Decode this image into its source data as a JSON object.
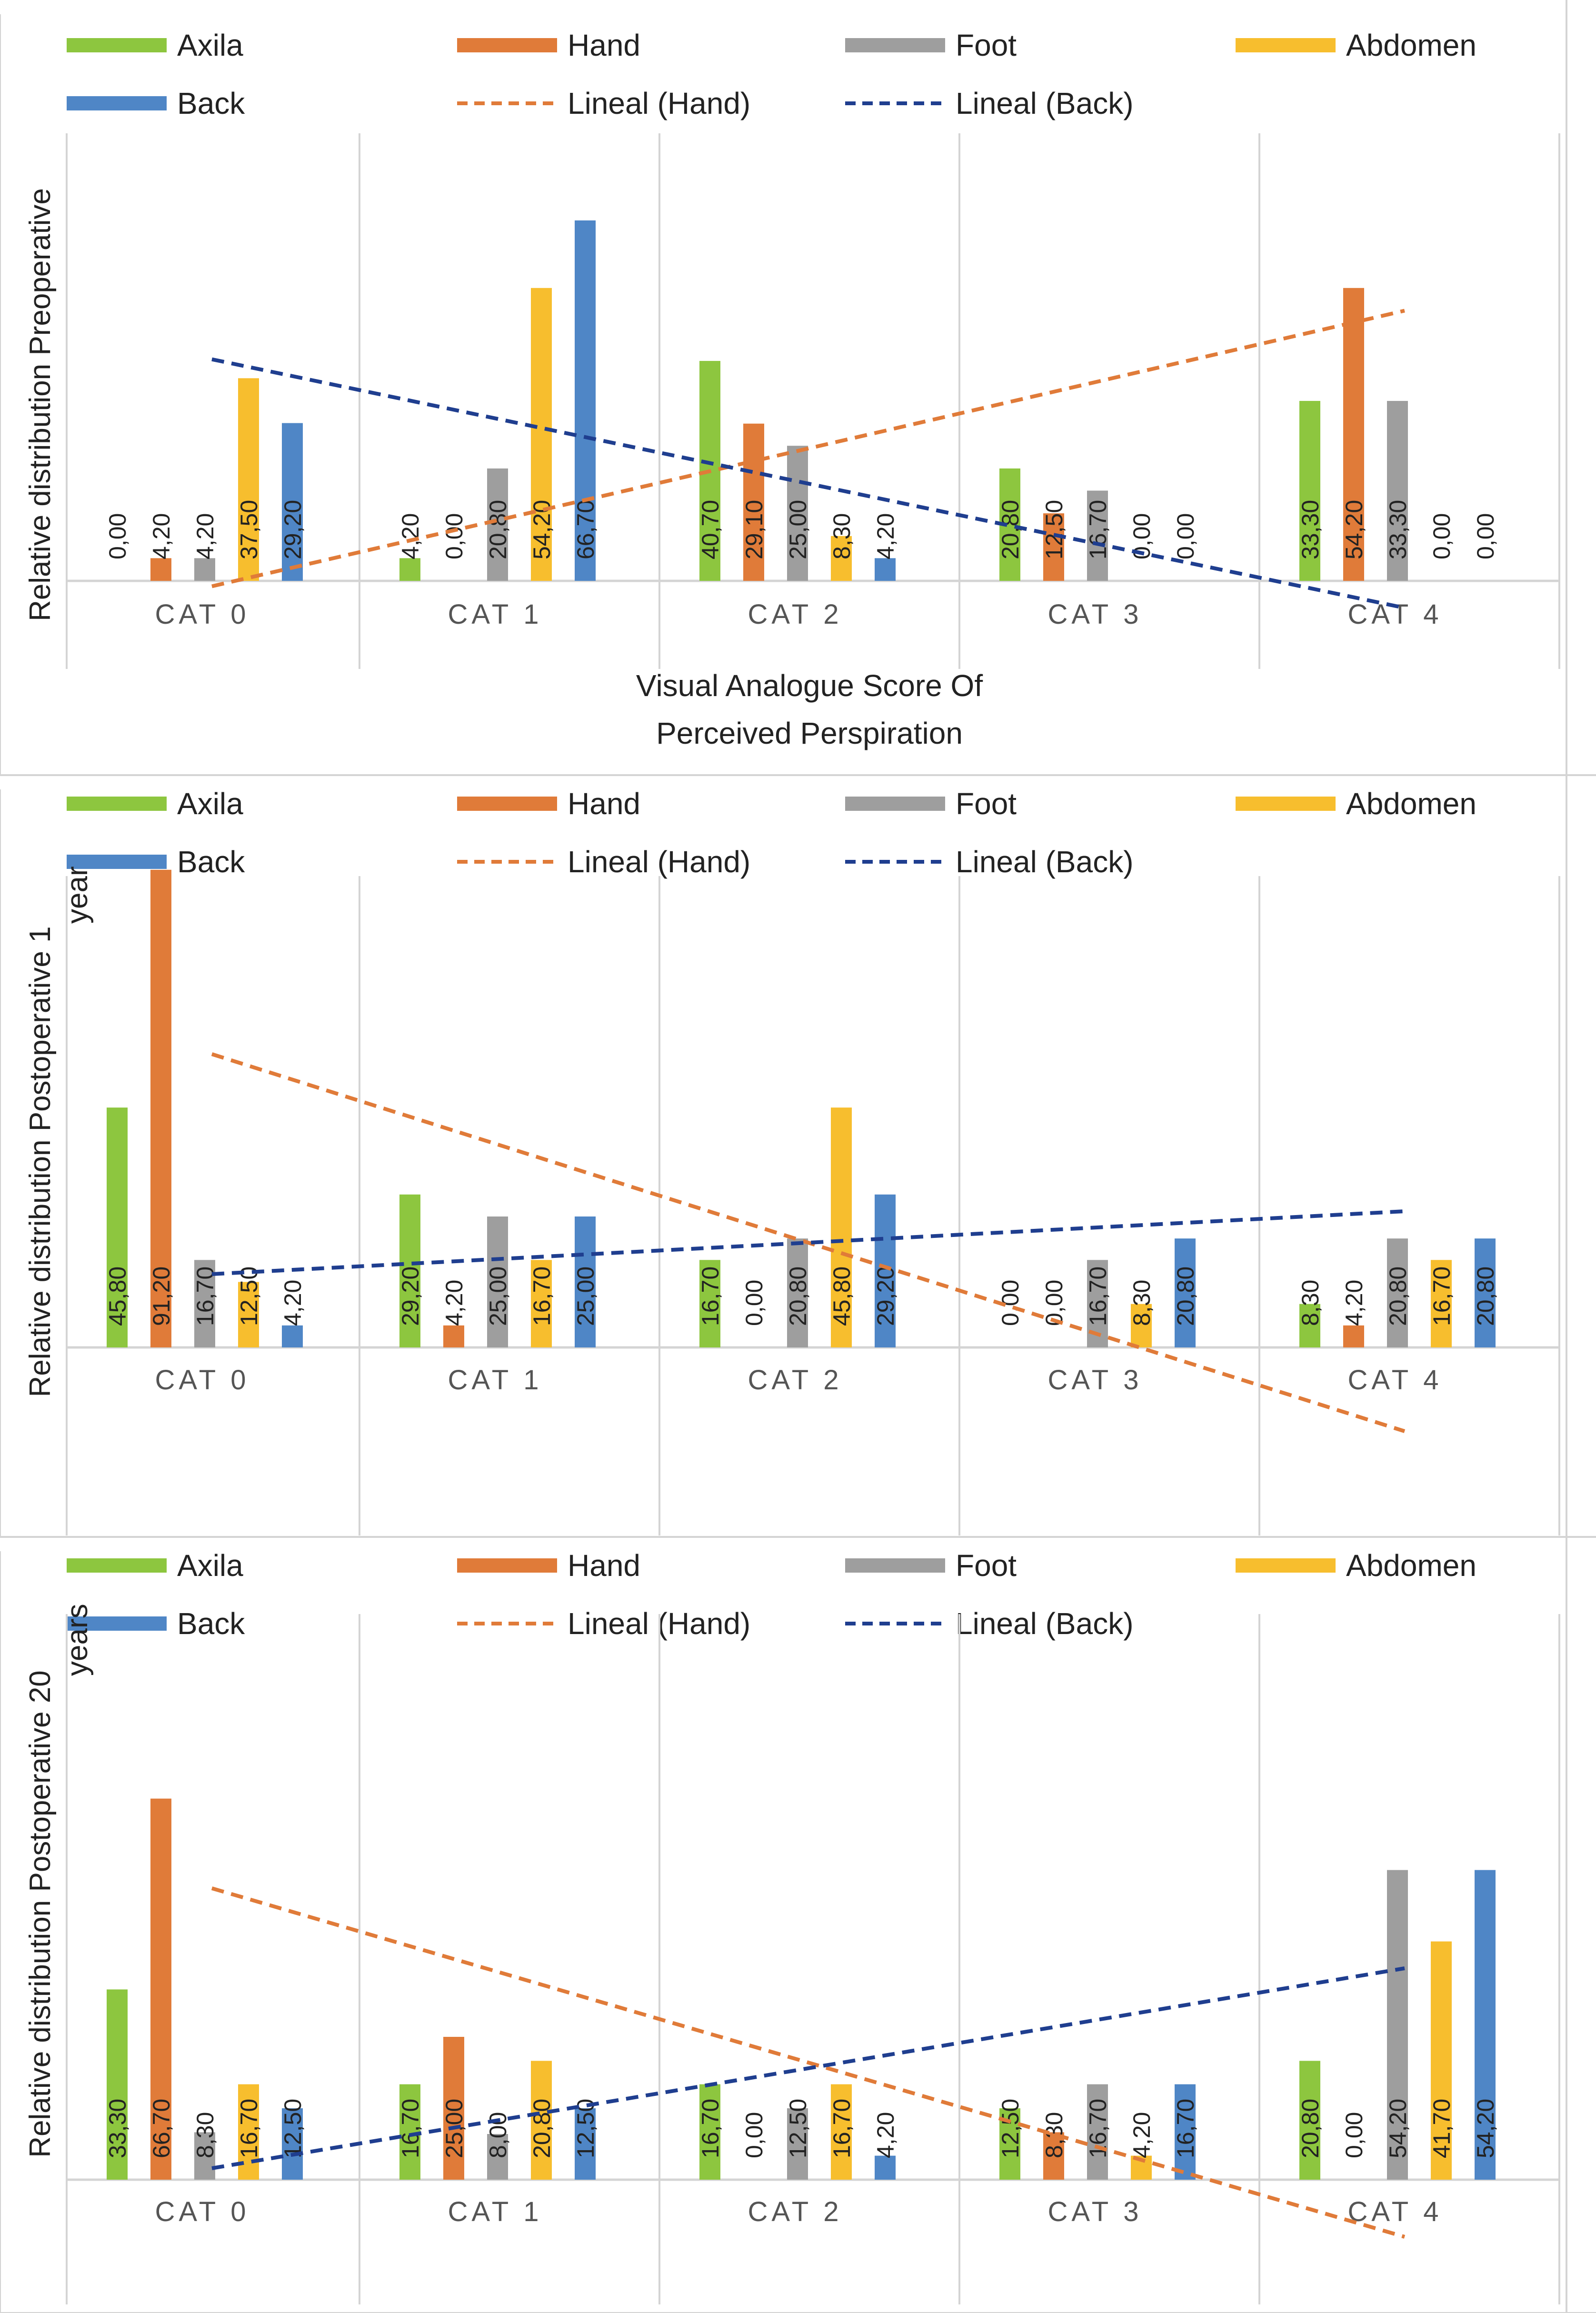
{
  "colors": {
    "Axila": "#8dc63f",
    "Hand": "#e07b39",
    "Foot": "#9e9e9e",
    "Abdomen": "#f7be2e",
    "Back": "#4f86c6",
    "trend_hand": "#e07b39",
    "trend_back": "#1f3e8f",
    "axis": "#d4d4d4",
    "text": "#222222",
    "tick": "#555555"
  },
  "legend": {
    "series": [
      "Axila",
      "Hand",
      "Foot",
      "Abdomen",
      "Back"
    ],
    "trends": [
      "Lineal (Hand)",
      "Lineal (Back)"
    ]
  },
  "chart_data": [
    {
      "type": "bar",
      "ylabel_lines": [
        "Relative distribution Preoperative"
      ],
      "xlabel_lines": [
        "Visual Analogue Score Of",
        "Perceived Perspiration"
      ],
      "categories": [
        "CAT 0",
        "CAT 1",
        "CAT 2",
        "CAT 3",
        "CAT 4"
      ],
      "series": [
        {
          "name": "Axila",
          "values": [
            0.0,
            4.2,
            40.7,
            20.8,
            33.3
          ],
          "labels": [
            "0,00",
            "4,20",
            "40,70",
            "20,80",
            "33,30"
          ]
        },
        {
          "name": "Hand",
          "values": [
            4.2,
            0.0,
            29.1,
            12.5,
            54.2
          ],
          "labels": [
            "4,20",
            "0,00",
            "29,10",
            "12,50",
            "54,20"
          ]
        },
        {
          "name": "Foot",
          "values": [
            4.2,
            20.8,
            25.0,
            16.7,
            33.3
          ],
          "labels": [
            "4,20",
            "20,80",
            "25,00",
            "16,70",
            "33,30"
          ]
        },
        {
          "name": "Abdomen",
          "values": [
            37.5,
            54.2,
            8.3,
            0.0,
            0.0
          ],
          "labels": [
            "37,50",
            "54,20",
            "8,30",
            "0,00",
            "0,00"
          ]
        },
        {
          "name": "Back",
          "values": [
            29.2,
            66.7,
            4.2,
            0.0,
            0.0
          ],
          "labels": [
            "29,20",
            "66,70",
            "4,20",
            "0,00",
            "0,00"
          ]
        }
      ],
      "trendlines": [
        {
          "name": "Lineal (Hand)",
          "series": "Hand",
          "start": -1.0,
          "end": 50.0
        },
        {
          "name": "Lineal (Back)",
          "series": "Back",
          "start": 41.0,
          "end": -5.0
        }
      ],
      "ylim": [
        -20,
        80
      ]
    },
    {
      "type": "bar",
      "ylabel_lines": [
        "Relative distribution Postoperative 1",
        "year"
      ],
      "xlabel_lines": [],
      "categories": [
        "CAT 0",
        "CAT 1",
        "CAT 2",
        "CAT 3",
        "CAT 4"
      ],
      "series": [
        {
          "name": "Axila",
          "values": [
            45.8,
            29.2,
            16.7,
            0.0,
            8.3
          ],
          "labels": [
            "45,80",
            "29,20",
            "16,70",
            "0,00",
            "8,30"
          ]
        },
        {
          "name": "Hand",
          "values": [
            91.2,
            4.2,
            0.0,
            0.0,
            4.2
          ],
          "labels": [
            "91,20",
            "4,20",
            "0,00",
            "0,00",
            "4,20"
          ]
        },
        {
          "name": "Foot",
          "values": [
            16.7,
            25.0,
            20.8,
            16.7,
            20.8
          ],
          "labels": [
            "16,70",
            "25,00",
            "20,80",
            "16,70",
            "20,80"
          ]
        },
        {
          "name": "Abdomen",
          "values": [
            12.5,
            16.7,
            45.8,
            8.3,
            16.7
          ],
          "labels": [
            "12,50",
            "16,70",
            "45,80",
            "8,30",
            "16,70"
          ]
        },
        {
          "name": "Back",
          "values": [
            4.2,
            25.0,
            29.2,
            20.8,
            20.8
          ],
          "labels": [
            "4,20",
            "25,00",
            "29,20",
            "20,80",
            "20,80"
          ]
        }
      ],
      "trendlines": [
        {
          "name": "Lineal (Hand)",
          "series": "Hand",
          "start": 56.0,
          "end": -16.0
        },
        {
          "name": "Lineal (Back)",
          "series": "Back",
          "start": 14.0,
          "end": 26.0
        }
      ],
      "ylim": [
        -40,
        100
      ]
    },
    {
      "type": "bar",
      "ylabel_lines": [
        "Relative distribution Postoperative 20",
        "years"
      ],
      "xlabel_lines": [],
      "categories": [
        "CAT 0",
        "CAT 1",
        "CAT 2",
        "CAT 3",
        "CAT 4"
      ],
      "series": [
        {
          "name": "Axila",
          "values": [
            33.3,
            16.7,
            16.7,
            12.5,
            20.8
          ],
          "labels": [
            "33,30",
            "16,70",
            "16,70",
            "12,50",
            "20,80"
          ]
        },
        {
          "name": "Hand",
          "values": [
            66.7,
            25.0,
            0.0,
            8.3,
            0.0
          ],
          "labels": [
            "66,70",
            "25,00",
            "0,00",
            "8,30",
            "0,00"
          ]
        },
        {
          "name": "Foot",
          "values": [
            8.3,
            8.0,
            12.5,
            16.7,
            54.2
          ],
          "labels": [
            "8,30",
            "8,00",
            "12,50",
            "16,70",
            "54,20"
          ]
        },
        {
          "name": "Abdomen",
          "values": [
            16.7,
            20.8,
            16.7,
            4.2,
            41.7
          ],
          "labels": [
            "16,70",
            "20,80",
            "16,70",
            "4,20",
            "41,70"
          ]
        },
        {
          "name": "Back",
          "values": [
            12.5,
            12.5,
            4.2,
            16.7,
            54.2
          ],
          "labels": [
            "12,50",
            "12,50",
            "4,20",
            "16,70",
            "54,20"
          ]
        }
      ],
      "trendlines": [
        {
          "name": "Lineal (Hand)",
          "series": "Hand",
          "start": 51.0,
          "end": -10.0
        },
        {
          "name": "Lineal (Back)",
          "series": "Back",
          "start": 2.0,
          "end": 37.0
        }
      ],
      "ylim": [
        -10,
        80
      ]
    }
  ]
}
